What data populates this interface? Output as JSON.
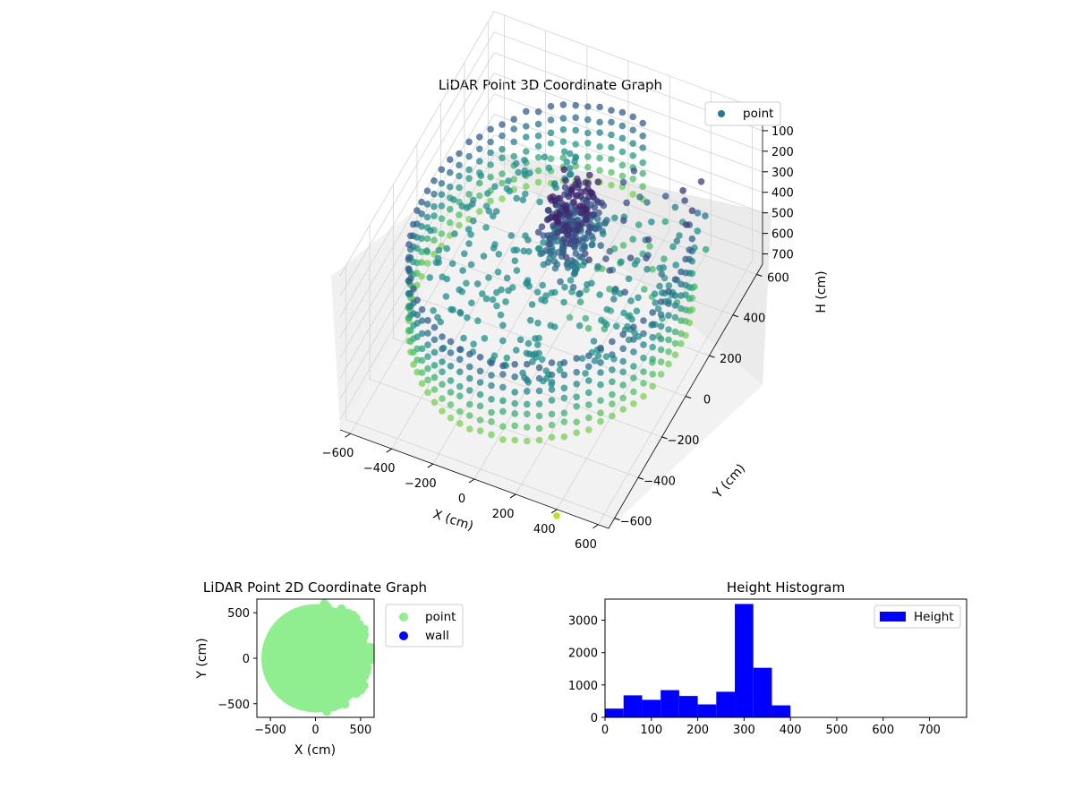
{
  "chart_data": [
    {
      "type": "scatter",
      "projection": "3d",
      "title": "LiDAR Point 3D Coordinate Graph",
      "xlabel": "X (cm)",
      "ylabel": "Y (cm)",
      "zlabel": "H (cm)",
      "xticks": [
        "−600",
        "−400",
        "−200",
        "0",
        "200",
        "400",
        "600"
      ],
      "yticks": [
        "−600",
        "−400",
        "−200",
        "0",
        "200",
        "400",
        "600"
      ],
      "zticks": [
        "0",
        "100",
        "200",
        "300",
        "400",
        "500",
        "600",
        "700"
      ],
      "xlim": [
        -650,
        650
      ],
      "ylim": [
        -650,
        650
      ],
      "zlim": [
        0,
        750
      ],
      "z_inverted": true,
      "colormap": "viridis",
      "grid": true,
      "legend": {
        "placement": "top-right",
        "entries": [
          {
            "label": "point",
            "color": "#2a788e"
          }
        ]
      },
      "series": [
        {
          "name": "point",
          "description_of_distribution": "ring wall of radius ~600 cm plus dense cluster near center"
        }
      ]
    },
    {
      "type": "scatter",
      "title": "LiDAR Point 2D Coordinate Graph",
      "xlabel": "X (cm)",
      "ylabel": "Y (cm)",
      "xticks": [
        "−500",
        "0",
        "500"
      ],
      "yticks": [
        "500",
        "0",
        "−500"
      ],
      "xlim": [
        -650,
        650
      ],
      "ylim": [
        -650,
        650
      ],
      "legend": {
        "placement": "outside-right",
        "entries": [
          {
            "label": "point",
            "color": "#90ee90"
          },
          {
            "label": "wall",
            "color": "#0000ff"
          }
        ]
      },
      "series": [
        {
          "name": "point",
          "color": "#90ee90"
        },
        {
          "name": "wall",
          "color": "#0000ff"
        }
      ]
    },
    {
      "type": "bar",
      "title": "Height Histogram",
      "xticks": [
        "0",
        "100",
        "200",
        "300",
        "400",
        "500",
        "600",
        "700"
      ],
      "yticks": [
        "0",
        "1000",
        "2000",
        "3000"
      ],
      "xlim": [
        0,
        780
      ],
      "ylim": [
        0,
        3650
      ],
      "bar_color": "#0000ff",
      "legend": {
        "placement": "top-right",
        "entries": [
          {
            "label": "Height",
            "color": "#0000ff"
          }
        ]
      },
      "bins": [
        {
          "x0": 0,
          "x1": 40,
          "value": 270
        },
        {
          "x0": 40,
          "x1": 80,
          "value": 680
        },
        {
          "x0": 80,
          "x1": 120,
          "value": 540
        },
        {
          "x0": 120,
          "x1": 160,
          "value": 840
        },
        {
          "x0": 160,
          "x1": 200,
          "value": 660
        },
        {
          "x0": 200,
          "x1": 240,
          "value": 400
        },
        {
          "x0": 240,
          "x1": 280,
          "value": 790
        },
        {
          "x0": 280,
          "x1": 320,
          "value": 3500
        },
        {
          "x0": 320,
          "x1": 360,
          "value": 1530
        },
        {
          "x0": 360,
          "x1": 400,
          "value": 370
        }
      ]
    }
  ]
}
